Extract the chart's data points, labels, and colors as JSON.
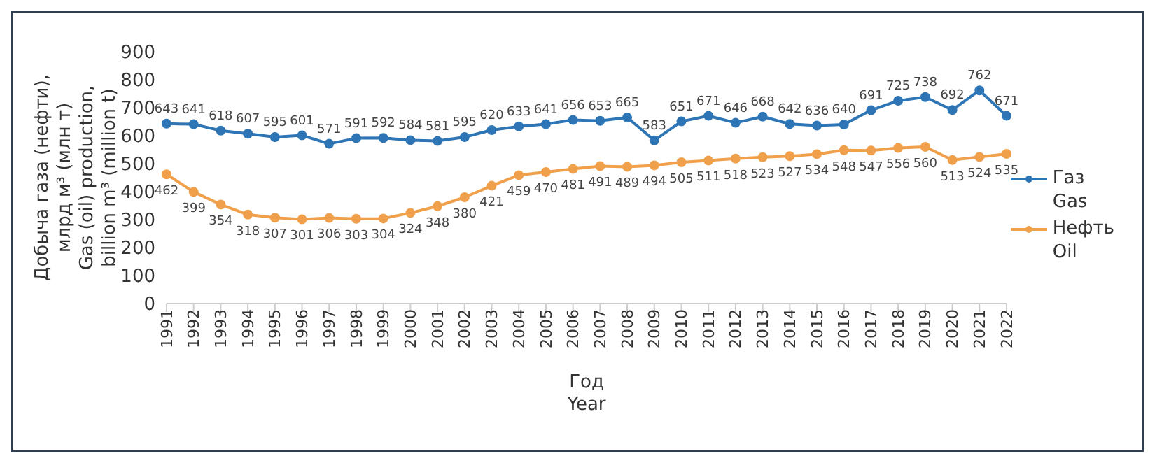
{
  "chart_data": {
    "type": "line",
    "xlabel": "Год\nYear",
    "ylabel": "Добыча газа (нефти),\nмлрд м³ (млн т)\nGas (oil) production,\nbillion m³ (million t)",
    "categories": [
      "1991",
      "1992",
      "1993",
      "1994",
      "1995",
      "1996",
      "1997",
      "1998",
      "1999",
      "2000",
      "2001",
      "2002",
      "2003",
      "2004",
      "2005",
      "2006",
      "2007",
      "2008",
      "2009",
      "2010",
      "2011",
      "2012",
      "2013",
      "2014",
      "2015",
      "2016",
      "2017",
      "2018",
      "2019",
      "2020",
      "2021",
      "2022"
    ],
    "series": [
      {
        "name": "Газ\nGas",
        "color": "#2e75b6",
        "values": [
          643,
          641,
          618,
          607,
          595,
          601,
          571,
          591,
          592,
          584,
          581,
          595,
          620,
          633,
          641,
          656,
          653,
          665,
          583,
          651,
          671,
          646,
          668,
          642,
          636,
          640,
          691,
          725,
          738,
          692,
          762,
          671
        ]
      },
      {
        "name": "Нефть\nOil",
        "color": "#f0a04b",
        "values": [
          462,
          399,
          354,
          318,
          307,
          301,
          306,
          303,
          304,
          324,
          348,
          380,
          421,
          459,
          470,
          481,
          491,
          489,
          494,
          505,
          511,
          518,
          523,
          527,
          534,
          548,
          547,
          556,
          560,
          513,
          524,
          535
        ]
      }
    ],
    "ylim": [
      0,
      900
    ],
    "yticks": [
      0,
      100,
      200,
      300,
      400,
      500,
      600,
      700,
      800,
      900
    ],
    "grid": false,
    "legend": "right",
    "marker": "circle",
    "line_style": "solid",
    "data_labels": true
  }
}
